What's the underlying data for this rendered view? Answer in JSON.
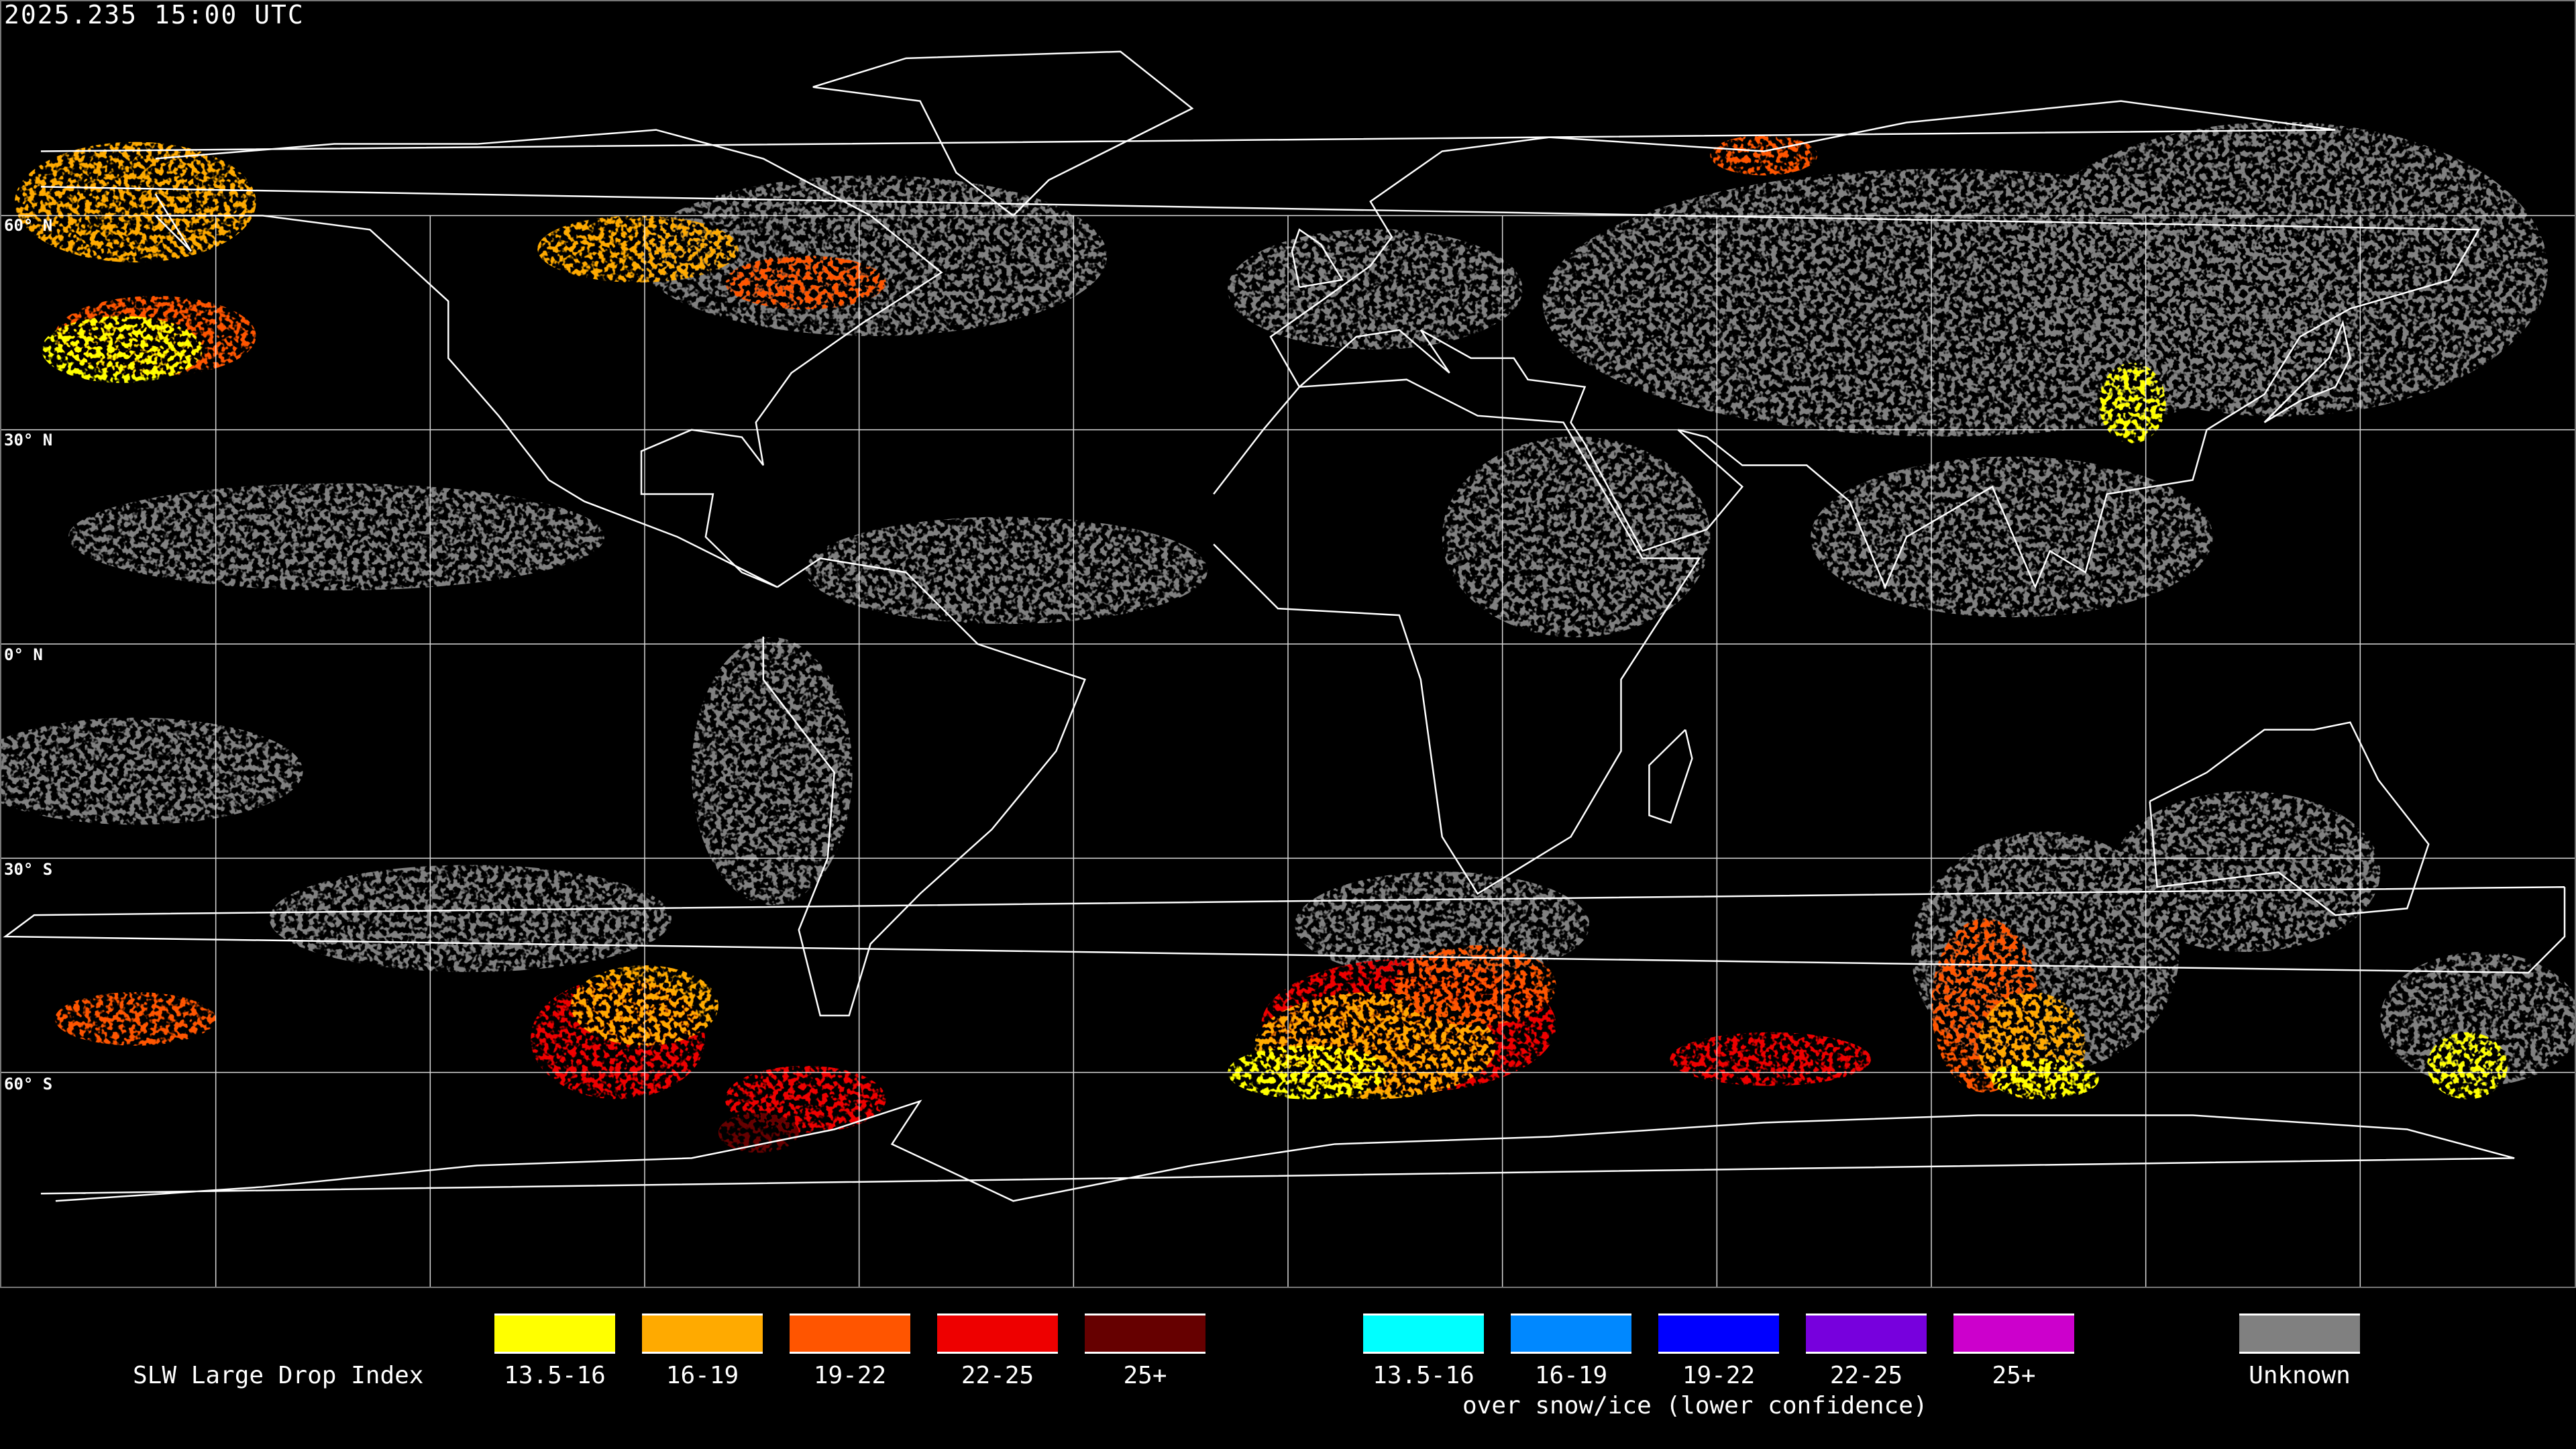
{
  "timestamp": "2025.235 15:00 UTC",
  "lat_labels": [
    "60° N",
    "30° N",
    "0° N",
    "30° S",
    "60° S"
  ],
  "legend": {
    "title": "SLW Large Drop Index",
    "subtitle": "over snow/ice (lower confidence)",
    "standard": [
      {
        "label": "13.5-16",
        "color": "#ffff00"
      },
      {
        "label": "16-19",
        "color": "#ffaa00"
      },
      {
        "label": "19-22",
        "color": "#ff5500"
      },
      {
        "label": "22-25",
        "color": "#ee0000"
      },
      {
        "label": "25+",
        "color": "#660000"
      }
    ],
    "snow_ice": [
      {
        "label": "13.5-16",
        "color": "#00ffff"
      },
      {
        "label": "16-19",
        "color": "#0088ff"
      },
      {
        "label": "19-22",
        "color": "#0000ff"
      },
      {
        "label": "22-25",
        "color": "#7700dd"
      },
      {
        "label": "25+",
        "color": "#cc00cc"
      }
    ],
    "unknown": {
      "label": "Unknown",
      "color": "#808080"
    }
  },
  "map": {
    "projection": "equirectangular",
    "grid_spacing_deg": 30,
    "grid_color": "#ffffff",
    "coastline_color": "#ffffff",
    "background": "#000000"
  }
}
